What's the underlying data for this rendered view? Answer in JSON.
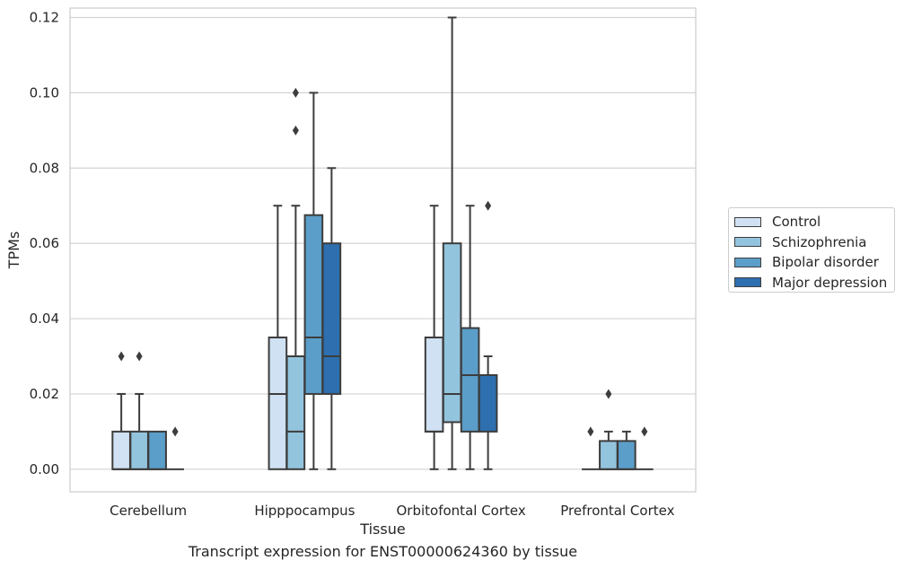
{
  "chart_data": {
    "type": "boxplot",
    "xlabel": "Tissue",
    "ylabel": "TPMs",
    "caption": "Transcript expression for ENST00000624360 by tissue",
    "ylim": [
      -0.006,
      0.1225
    ],
    "yticks": [
      0.0,
      0.02,
      0.04,
      0.06,
      0.08,
      0.1,
      0.12
    ],
    "ytick_labels": [
      "0.00",
      "0.02",
      "0.04",
      "0.06",
      "0.08",
      "0.10",
      "0.12"
    ],
    "grid": true,
    "legend_placement": "right",
    "categories": [
      "Cerebellum",
      "Hipppocampus",
      "Orbitofontal Cortex",
      "Prefrontal Cortex"
    ],
    "series": [
      {
        "name": "Control",
        "color": "#cfe1f2",
        "boxes": [
          {
            "whislo": 0,
            "q1": 0,
            "med": 0,
            "q3": 0.01,
            "whishi": 0.02,
            "fliers": [
              0.03
            ]
          },
          {
            "whislo": 0,
            "q1": 0,
            "med": 0.02,
            "q3": 0.035,
            "whishi": 0.07,
            "fliers": []
          },
          {
            "whislo": 0,
            "q1": 0.01,
            "med": 0.01,
            "q3": 0.035,
            "whishi": 0.07,
            "fliers": []
          },
          {
            "whislo": 0,
            "q1": 0,
            "med": 0,
            "q3": 0,
            "whishi": 0,
            "fliers": [
              0.01
            ]
          }
        ]
      },
      {
        "name": "Schizophrenia",
        "color": "#93c4de",
        "boxes": [
          {
            "whislo": 0,
            "q1": 0,
            "med": 0,
            "q3": 0.01,
            "whishi": 0.02,
            "fliers": [
              0.03
            ]
          },
          {
            "whislo": 0,
            "q1": 0,
            "med": 0.01,
            "q3": 0.03,
            "whishi": 0.07,
            "fliers": [
              0.09,
              0.1
            ]
          },
          {
            "whislo": 0,
            "q1": 0.0125,
            "med": 0.02,
            "q3": 0.06,
            "whishi": 0.12,
            "fliers": []
          },
          {
            "whislo": 0,
            "q1": 0,
            "med": 0,
            "q3": 0.0075,
            "whishi": 0.01,
            "fliers": [
              0.02
            ]
          }
        ]
      },
      {
        "name": "Bipolar disorder",
        "color": "#5b9ec9",
        "boxes": [
          {
            "whislo": 0,
            "q1": 0,
            "med": 0,
            "q3": 0.01,
            "whishi": 0.01,
            "fliers": []
          },
          {
            "whislo": 0,
            "q1": 0.02,
            "med": 0.035,
            "q3": 0.0675,
            "whishi": 0.1,
            "fliers": []
          },
          {
            "whislo": 0,
            "q1": 0.01,
            "med": 0.025,
            "q3": 0.0375,
            "whishi": 0.07,
            "fliers": []
          },
          {
            "whislo": 0,
            "q1": 0,
            "med": 0,
            "q3": 0.0075,
            "whishi": 0.01,
            "fliers": []
          }
        ]
      },
      {
        "name": "Major depression",
        "color": "#2e6faf",
        "boxes": [
          {
            "whislo": 0,
            "q1": 0,
            "med": 0,
            "q3": 0,
            "whishi": 0,
            "fliers": [
              0.01
            ]
          },
          {
            "whislo": 0,
            "q1": 0.02,
            "med": 0.03,
            "q3": 0.06,
            "whishi": 0.08,
            "fliers": []
          },
          {
            "whislo": 0,
            "q1": 0.01,
            "med": 0.025,
            "q3": 0.025,
            "whishi": 0.03,
            "fliers": [
              0.07
            ]
          },
          {
            "whislo": 0,
            "q1": 0,
            "med": 0,
            "q3": 0,
            "whishi": 0,
            "fliers": [
              0.01
            ]
          }
        ]
      }
    ]
  }
}
